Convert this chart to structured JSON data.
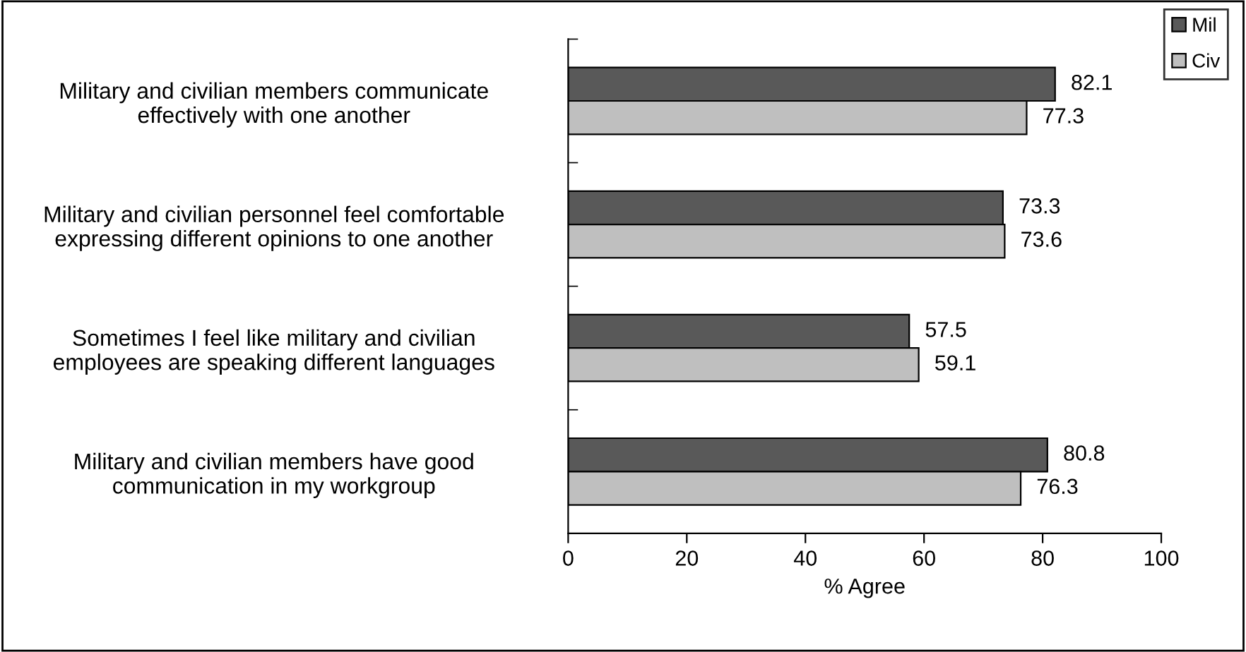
{
  "chart_data": {
    "type": "bar",
    "orientation": "horizontal",
    "xlabel": "% Agree",
    "categories": [
      "Military and civilian members communicate\neffectively with one another",
      "Military and civilian personnel feel comfortable\nexpressing different opinions to one another",
      "Sometimes I feel like military and civilian\nemployees are speaking different languages",
      "Military and civilian members have good\ncommunication in my workgroup"
    ],
    "series": [
      {
        "name": "Mil",
        "color": "#595959",
        "values": [
          82.1,
          73.3,
          57.5,
          80.8
        ]
      },
      {
        "name": "Civ",
        "color": "#bfbfbf",
        "values": [
          77.3,
          73.6,
          59.1,
          76.3
        ]
      }
    ],
    "xlim": [
      0,
      100
    ],
    "xticks": [
      0,
      20,
      40,
      60,
      80,
      100
    ],
    "data_labels": true,
    "legend": "top right",
    "grid": false
  }
}
